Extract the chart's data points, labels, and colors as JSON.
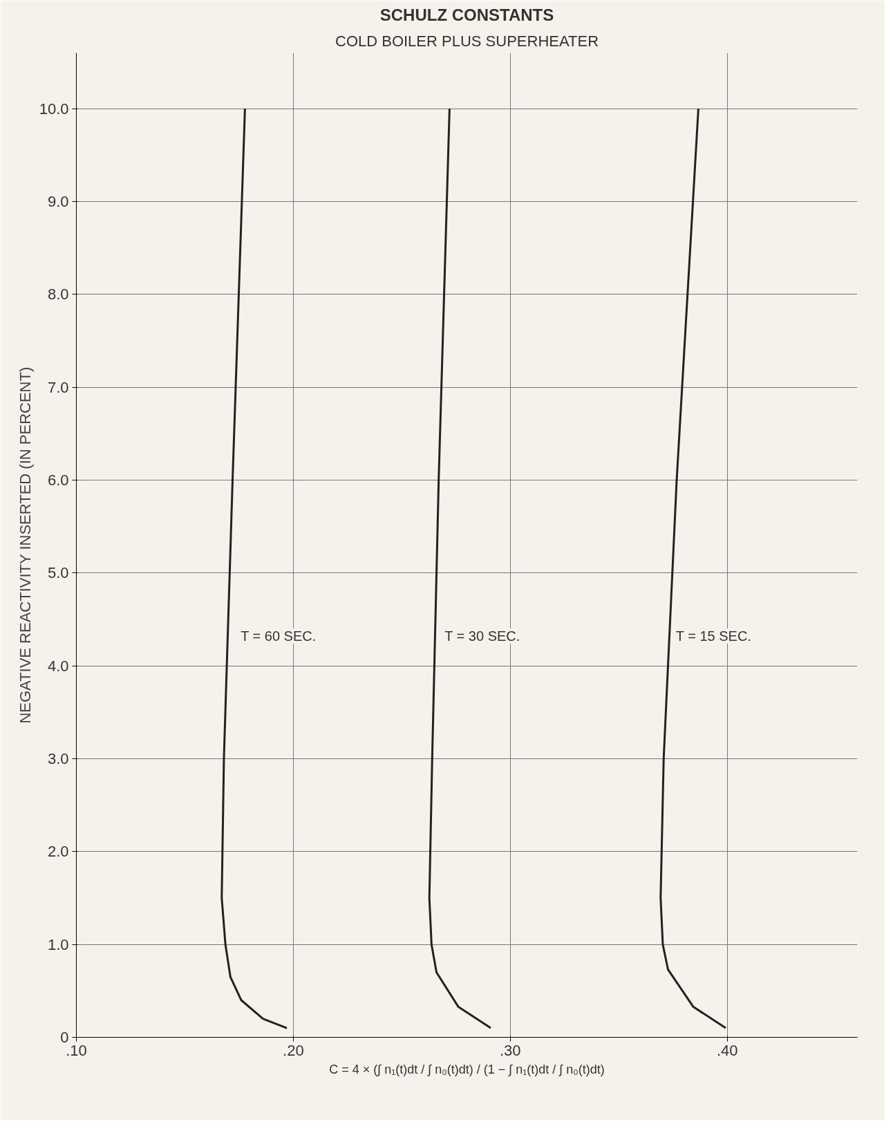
{
  "chart_data": {
    "type": "line",
    "title": "SCHULZ CONSTANTS",
    "subtitle": "COLD BOILER PLUS SUPERHEATER",
    "ylabel": "NEGATIVE REACTIVITY INSERTED (IN PERCENT)",
    "xlim": [
      0.1,
      0.46
    ],
    "ylim": [
      0,
      10.6
    ],
    "xticks": [
      {
        "value": 0.1,
        "label": ".10"
      },
      {
        "value": 0.2,
        "label": ".20"
      },
      {
        "value": 0.3,
        "label": ".30"
      },
      {
        "value": 0.4,
        "label": ".40"
      }
    ],
    "yticks": [
      0,
      {
        "value": 1,
        "label": "1.0"
      },
      {
        "value": 2,
        "label": "2.0"
      },
      {
        "value": 3,
        "label": "3.0"
      },
      {
        "value": 4,
        "label": "4.0"
      },
      {
        "value": 5,
        "label": "5.0"
      },
      {
        "value": 6,
        "label": "6.0"
      },
      {
        "value": 7,
        "label": "7.0"
      },
      {
        "value": 8,
        "label": "8.0"
      },
      {
        "value": 9,
        "label": "9.0"
      },
      {
        "value": 10,
        "label": "10.0"
      }
    ],
    "grid": true,
    "marker": "none",
    "line_style": "solid",
    "series": [
      {
        "name": "T = 60 SEC.",
        "color": "#222222",
        "x": [
          0.197,
          0.186,
          0.176,
          0.171,
          0.1687,
          0.167,
          0.168,
          0.172,
          0.1777
        ],
        "values": [
          0.1,
          0.2,
          0.4,
          0.65,
          1.0,
          1.5,
          3.0,
          6.0,
          10.0
        ]
      },
      {
        "name": "T = 30 SEC.",
        "color": "#222222",
        "x": [
          0.291,
          0.276,
          0.266,
          0.2637,
          0.2627,
          0.264,
          0.267,
          0.272
        ],
        "values": [
          0.1,
          0.33,
          0.7,
          1.0,
          1.5,
          3.0,
          6.0,
          10.0
        ]
      },
      {
        "name": "T = 15 SEC.",
        "color": "#222222",
        "x": [
          0.3993,
          0.3843,
          0.3727,
          0.3703,
          0.3693,
          0.3707,
          0.3767,
          0.3867
        ],
        "values": [
          0.1,
          0.33,
          0.73,
          1.0,
          1.5,
          3.0,
          6.0,
          10.0
        ]
      }
    ],
    "annotations": [
      "C = 4 × (∫ n₁(t)dt / ∫ n₀(t)dt) / (1 − ∫ n₁(t)dt / ∫ n₀(t)dt)"
    ]
  }
}
